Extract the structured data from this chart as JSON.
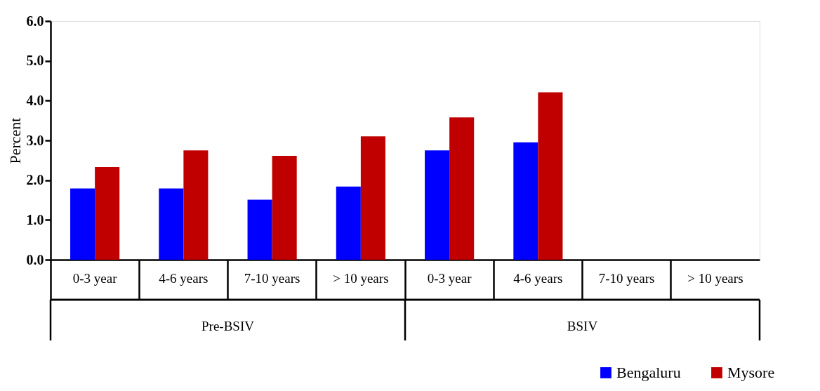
{
  "chart_data": {
    "type": "bar",
    "ylabel": "Percent",
    "categories": [
      "0-3 year",
      "4-6 years",
      "7-10 years",
      "> 10 years",
      "0-3 year",
      "4-6 years",
      "7-10 years",
      "> 10 years"
    ],
    "series": [
      {
        "name": "Bengaluru",
        "color": "#0000ff",
        "values": [
          1.79,
          1.79,
          1.51,
          1.84,
          2.75,
          2.95,
          null,
          null
        ]
      },
      {
        "name": "Mysore",
        "color": "#c00000",
        "values": [
          2.33,
          2.75,
          2.61,
          3.1,
          3.58,
          4.21,
          null,
          null
        ]
      }
    ],
    "annotations": [
      "Pre-BSIV",
      "BSIV"
    ],
    "ylim": [
      0,
      6
    ],
    "yticks": [
      {
        "value": 0,
        "label": "0.0"
      },
      {
        "value": 1,
        "label": "1.0"
      },
      {
        "value": 2,
        "label": "2.0"
      },
      {
        "value": 3,
        "label": "3.0"
      },
      {
        "value": 4,
        "label": "4.0"
      },
      {
        "value": 5,
        "label": "5.0"
      },
      {
        "value": 6,
        "label": "6.0"
      }
    ],
    "grid": false,
    "legend": "bottom right"
  }
}
